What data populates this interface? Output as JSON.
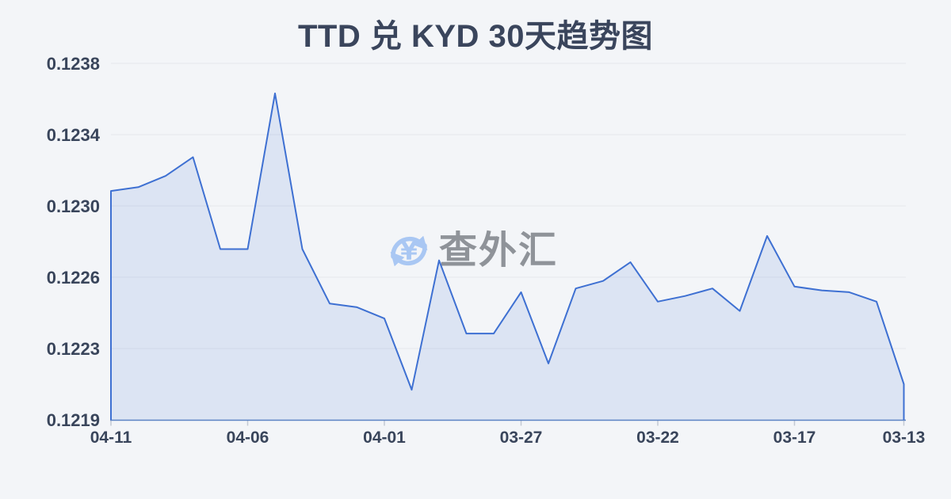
{
  "page": {
    "background": "#f3f5f8"
  },
  "header": {
    "title": "TTD 兑 KYD 30天趋势图"
  },
  "watermark": {
    "icon": "currency-exchange-icon",
    "icon_color": "#a9c7f3",
    "text": "查外汇",
    "text_color": "#8f9399"
  },
  "chart_data": {
    "type": "area",
    "title": "TTD 兑 KYD 30天趋势图",
    "x": [
      "04-11",
      "04-10",
      "04-09",
      "04-08",
      "04-07",
      "04-06",
      "04-05",
      "04-04",
      "04-03",
      "04-02",
      "04-01",
      "03-31",
      "03-30",
      "03-29",
      "03-28",
      "03-27",
      "03-26",
      "03-25",
      "03-24",
      "03-23",
      "03-22",
      "03-21",
      "03-20",
      "03-19",
      "03-18",
      "03-17",
      "03-16",
      "03-15",
      "03-14",
      "03-13"
    ],
    "values": [
      0.12312,
      0.12314,
      0.1232,
      0.1233,
      0.12281,
      0.12281,
      0.12364,
      0.12281,
      0.12252,
      0.1225,
      0.12244,
      0.12206,
      0.12275,
      0.12236,
      0.12236,
      0.12258,
      0.1222,
      0.1226,
      0.12264,
      0.12274,
      0.12253,
      0.12256,
      0.1226,
      0.12248,
      0.12288,
      0.12261,
      0.12259,
      0.12258,
      0.12253,
      0.12209
    ],
    "x_tick_labels": [
      "04-11",
      "04-06",
      "04-01",
      "03-27",
      "03-22",
      "03-17",
      "03-13"
    ],
    "x_tick_indices": [
      0,
      5,
      10,
      15,
      20,
      25,
      29
    ],
    "y_tick_labels": [
      "0.1238",
      "0.1234",
      "0.1230",
      "0.1226",
      "0.1223",
      "0.1219"
    ],
    "ylim": [
      0.1219,
      0.1238
    ],
    "grid": "horizontal-only",
    "legend": "none",
    "colors": {
      "line": "#3e70d2",
      "fill": "rgba(93,132,212,0.15)",
      "grid": "#e4e7ec",
      "axis": "#5b82c4",
      "tick": "#c3c9d4",
      "label": "#39455b",
      "title": "#3a455c"
    }
  }
}
